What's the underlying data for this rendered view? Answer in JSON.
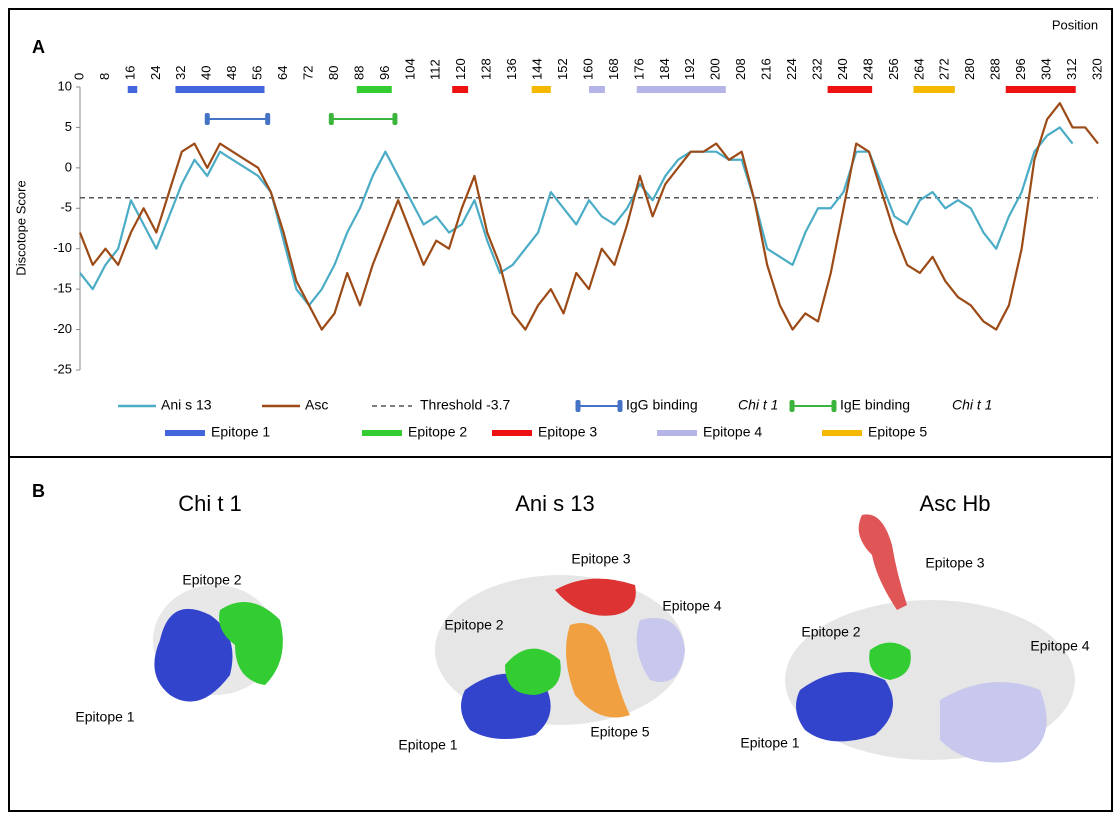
{
  "panel_a": {
    "label": "A"
  },
  "chart_data": {
    "type": "line",
    "x_label": "Position",
    "y_label": "Discotope Score",
    "x": [
      0,
      4,
      8,
      12,
      16,
      20,
      24,
      28,
      32,
      36,
      40,
      44,
      48,
      52,
      56,
      60,
      64,
      68,
      72,
      76,
      80,
      84,
      88,
      92,
      96,
      100,
      104,
      108,
      112,
      116,
      120,
      124,
      128,
      132,
      136,
      140,
      144,
      148,
      152,
      156,
      160,
      164,
      168,
      172,
      176,
      180,
      184,
      188,
      192,
      196,
      200,
      204,
      208,
      212,
      216,
      220,
      224,
      228,
      232,
      236,
      240,
      244,
      248,
      252,
      256,
      260,
      264,
      268,
      272,
      276,
      280,
      284,
      288,
      292,
      296,
      300,
      304,
      308,
      312,
      316,
      320
    ],
    "xlim": [
      0,
      320
    ],
    "xticks": [
      0,
      8,
      16,
      24,
      32,
      40,
      48,
      56,
      64,
      72,
      80,
      88,
      96,
      104,
      112,
      120,
      128,
      136,
      144,
      152,
      160,
      168,
      176,
      184,
      192,
      200,
      208,
      216,
      224,
      232,
      240,
      248,
      256,
      264,
      272,
      280,
      288,
      296,
      304,
      312,
      320
    ],
    "ylim": [
      -25,
      10
    ],
    "yticks": [
      -25,
      -20,
      -15,
      -10,
      -5,
      0,
      5,
      10
    ],
    "series": [
      {
        "name": "Ani s 13",
        "color": "#4bacc6",
        "values": [
          -13,
          -15,
          -12,
          -10,
          -4,
          -7,
          -10,
          -6,
          -2,
          1,
          -1,
          2,
          1,
          0,
          -1,
          -3,
          -9,
          -15,
          -17,
          -15,
          -12,
          -8,
          -5,
          -1,
          2,
          -1,
          -4,
          -7,
          -6,
          -8,
          -7,
          -4,
          -9,
          -13,
          -12,
          -10,
          -8,
          -3,
          -5,
          -7,
          -4,
          -6,
          -7,
          -5,
          -2,
          -4,
          -1,
          1,
          2,
          2,
          2,
          1,
          1,
          -4,
          -10,
          -11,
          -12,
          -8,
          -5,
          -5,
          -3,
          2,
          2,
          -2,
          -6,
          -7,
          -4,
          -3,
          -5,
          -4,
          -5,
          -8,
          -10,
          -6,
          -3,
          2,
          4,
          5,
          3,
          null,
          null
        ]
      },
      {
        "name": "Asc",
        "color": "#9c4a16",
        "values": [
          -8,
          -12,
          -10,
          -12,
          -8,
          -5,
          -8,
          -3,
          2,
          3,
          0,
          3,
          2,
          1,
          0,
          -3,
          -8,
          -14,
          -17,
          -20,
          -18,
          -13,
          -17,
          -12,
          -8,
          -4,
          -8,
          -12,
          -9,
          -10,
          -5,
          -1,
          -8,
          -12,
          -18,
          -20,
          -17,
          -15,
          -18,
          -13,
          -15,
          -10,
          -12,
          -7,
          -1,
          -6,
          -2,
          0,
          2,
          2,
          3,
          1,
          2,
          -4,
          -12,
          -17,
          -20,
          -18,
          -19,
          -13,
          -5,
          3,
          2,
          -3,
          -8,
          -12,
          -13,
          -11,
          -14,
          -16,
          -17,
          -19,
          -20,
          -17,
          -10,
          1,
          6,
          8,
          5,
          5,
          3
        ]
      }
    ],
    "threshold": {
      "name": "Threshold -3.7",
      "value": -3.7
    },
    "binding": [
      {
        "name": "IgG binding",
        "organism": "Chi t 1",
        "color": "#4472c4",
        "range": [
          40,
          59
        ]
      },
      {
        "name": "IgE binding",
        "organism": "Chi t 1",
        "color": "#3cb43c",
        "range": [
          79,
          99
        ]
      }
    ],
    "epitopes": [
      {
        "name": "Epitope 1",
        "color": "#4466dd",
        "ranges": [
          [
            15,
            18
          ],
          [
            30,
            58
          ]
        ]
      },
      {
        "name": "Epitope 2",
        "color": "#33cc33",
        "ranges": [
          [
            87,
            98
          ]
        ]
      },
      {
        "name": "Epitope 3",
        "color": "#ee1111",
        "ranges": [
          [
            117,
            122
          ],
          [
            235,
            249
          ],
          [
            291,
            313
          ]
        ]
      },
      {
        "name": "Epitope 4",
        "color": "#b4b4e6",
        "ranges": [
          [
            160,
            165
          ],
          [
            175,
            203
          ]
        ]
      },
      {
        "name": "Epitope 5",
        "color": "#f5b800",
        "ranges": [
          [
            142,
            148
          ],
          [
            262,
            275
          ]
        ]
      }
    ]
  },
  "panel_b": {
    "label": "B",
    "structures": [
      {
        "title": "Chi t 1",
        "labels": [
          "Epitope 2",
          "Epitope 1"
        ]
      },
      {
        "title": "Ani s 13",
        "labels": [
          "Epitope 3",
          "Epitope 4",
          "Epitope 2",
          "Epitope 1",
          "Epitope 5"
        ]
      },
      {
        "title": "Asc Hb",
        "labels": [
          "Epitope 3",
          "Epitope 2",
          "Epitope 4",
          "Epitope 1"
        ]
      }
    ]
  }
}
